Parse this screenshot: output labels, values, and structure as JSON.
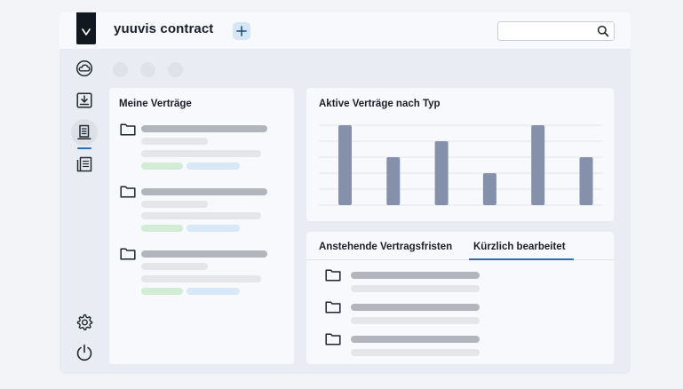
{
  "app": {
    "title": "yuuvis contract"
  },
  "search": {
    "value": "",
    "placeholder": ""
  },
  "sidebar": {
    "items": [
      {
        "name": "cloud",
        "icon": "cloud-icon",
        "active": false
      },
      {
        "name": "inbox",
        "icon": "download-tray-icon",
        "active": false
      },
      {
        "name": "contracts",
        "icon": "document-stack-icon",
        "active": true
      },
      {
        "name": "list",
        "icon": "list-document-icon",
        "active": false
      }
    ],
    "bottom": [
      {
        "name": "settings",
        "icon": "gear-icon"
      },
      {
        "name": "logout",
        "icon": "power-icon"
      }
    ]
  },
  "my_contracts": {
    "title": "Meine Verträge",
    "items": [
      {
        "icon": "folder-icon"
      },
      {
        "icon": "folder-icon"
      },
      {
        "icon": "folder-icon"
      }
    ]
  },
  "active_chart": {
    "title": "Aktive Verträge nach Typ",
    "bar_color": "#8591aa"
  },
  "chart_data": {
    "type": "bar",
    "title": "Aktive Verträge nach Typ",
    "categories": [
      "",
      "",
      "",
      "",
      "",
      ""
    ],
    "values": [
      5,
      3,
      4,
      2,
      5,
      3
    ],
    "ylim": [
      0,
      5
    ],
    "grid": true,
    "xlabel": "",
    "ylabel": ""
  },
  "tabs": {
    "items": [
      {
        "label": "Anstehende Vertragsfristen",
        "active": false
      },
      {
        "label": "Kürzlich bearbeitet",
        "active": true
      }
    ],
    "list": [
      {
        "icon": "folder-icon"
      },
      {
        "icon": "folder-icon"
      },
      {
        "icon": "folder-icon"
      }
    ]
  },
  "colors": {
    "accent": "#2f6fae",
    "logo": "#121820",
    "plus_bg": "#d5e6f6"
  }
}
